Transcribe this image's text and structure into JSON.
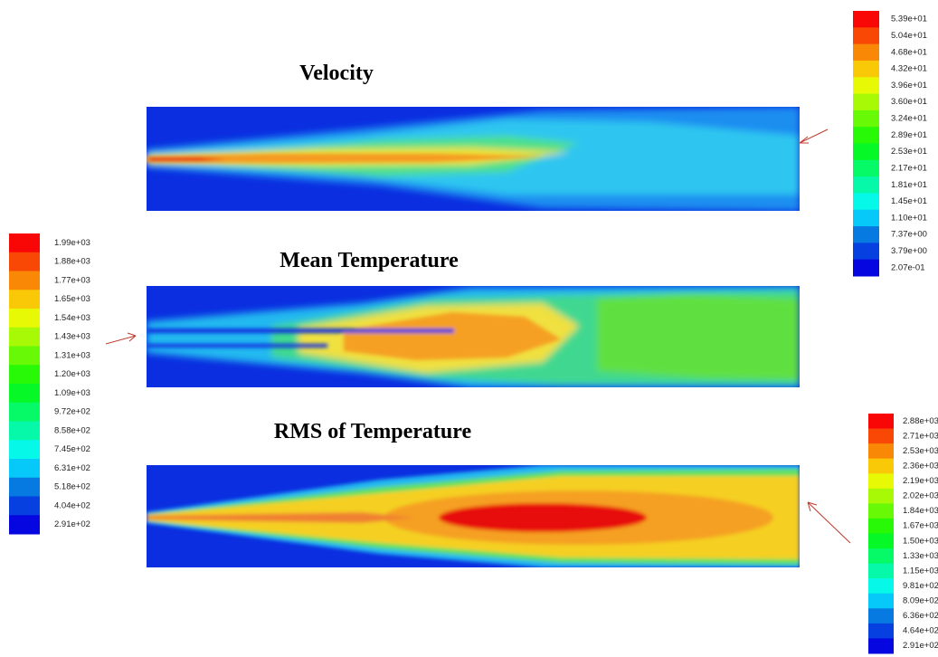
{
  "panels": [
    {
      "title": "Velocity"
    },
    {
      "title": "Mean Temperature"
    },
    {
      "title": "RMS of Temperature"
    }
  ],
  "colorbars": [
    {
      "labels": [
        "5.39e+01",
        "5.04e+01",
        "4.68e+01",
        "4.32e+01",
        "3.96e+01",
        "3.60e+01",
        "3.24e+01",
        "2.89e+01",
        "2.53e+01",
        "2.17e+01",
        "1.81e+01",
        "1.45e+01",
        "1.10e+01",
        "7.37e+00",
        "3.79e+00",
        "2.07e-01"
      ]
    },
    {
      "labels": [
        "1.99e+03",
        "1.88e+03",
        "1.77e+03",
        "1.65e+03",
        "1.54e+03",
        "1.43e+03",
        "1.31e+03",
        "1.20e+03",
        "1.09e+03",
        "9.72e+02",
        "8.58e+02",
        "7.45e+02",
        "6.31e+02",
        "5.18e+02",
        "4.04e+02",
        "2.91e+02"
      ]
    },
    {
      "labels": [
        "2.88e+03",
        "2.71e+03",
        "2.53e+03",
        "2.36e+03",
        "2.19e+03",
        "2.02e+03",
        "1.84e+03",
        "1.67e+03",
        "1.50e+03",
        "1.33e+03",
        "1.15e+03",
        "9.81e+02",
        "8.09e+02",
        "6.36e+02",
        "4.64e+02",
        "2.91e+02"
      ]
    }
  ]
}
